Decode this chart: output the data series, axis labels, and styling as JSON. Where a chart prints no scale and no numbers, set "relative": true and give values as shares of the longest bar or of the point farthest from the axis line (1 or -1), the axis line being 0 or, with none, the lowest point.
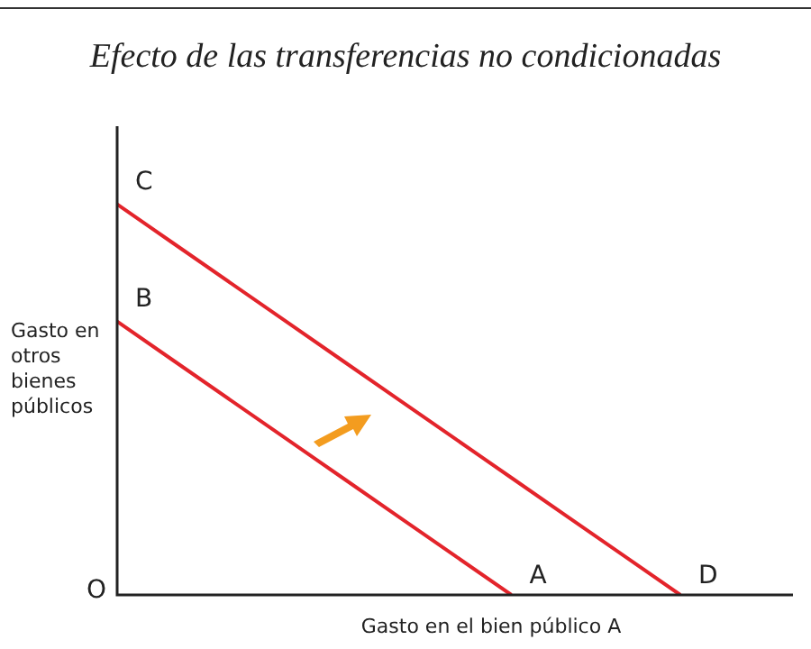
{
  "chart_data": {
    "type": "line",
    "title": "Efecto de las transferencias no condicionadas",
    "xlabel": "Gasto en el bien público A",
    "ylabel": "Gasto en otros bienes públicos",
    "relative": true,
    "marker": "none",
    "categories": [
      null,
      null,
      null,
      null,
      null,
      null,
      null,
      null,
      null,
      null,
      null,
      null,
      null
    ],
    "series": [
      {
        "color": "#e3242b",
        "values": [
          0.7,
          0.6,
          0.5,
          0.4,
          0.3,
          0.2,
          0.1,
          0,
          null,
          null,
          null,
          null,
          null
        ]
      },
      {
        "color": "#e3242b",
        "values": [
          1,
          0.9,
          0.8,
          0.7,
          0.6,
          0.5,
          0.4,
          0.3,
          0.2,
          0.1,
          0,
          null,
          null
        ]
      }
    ],
    "annotations": [
      "O",
      "A",
      "B",
      "C",
      "D"
    ]
  }
}
